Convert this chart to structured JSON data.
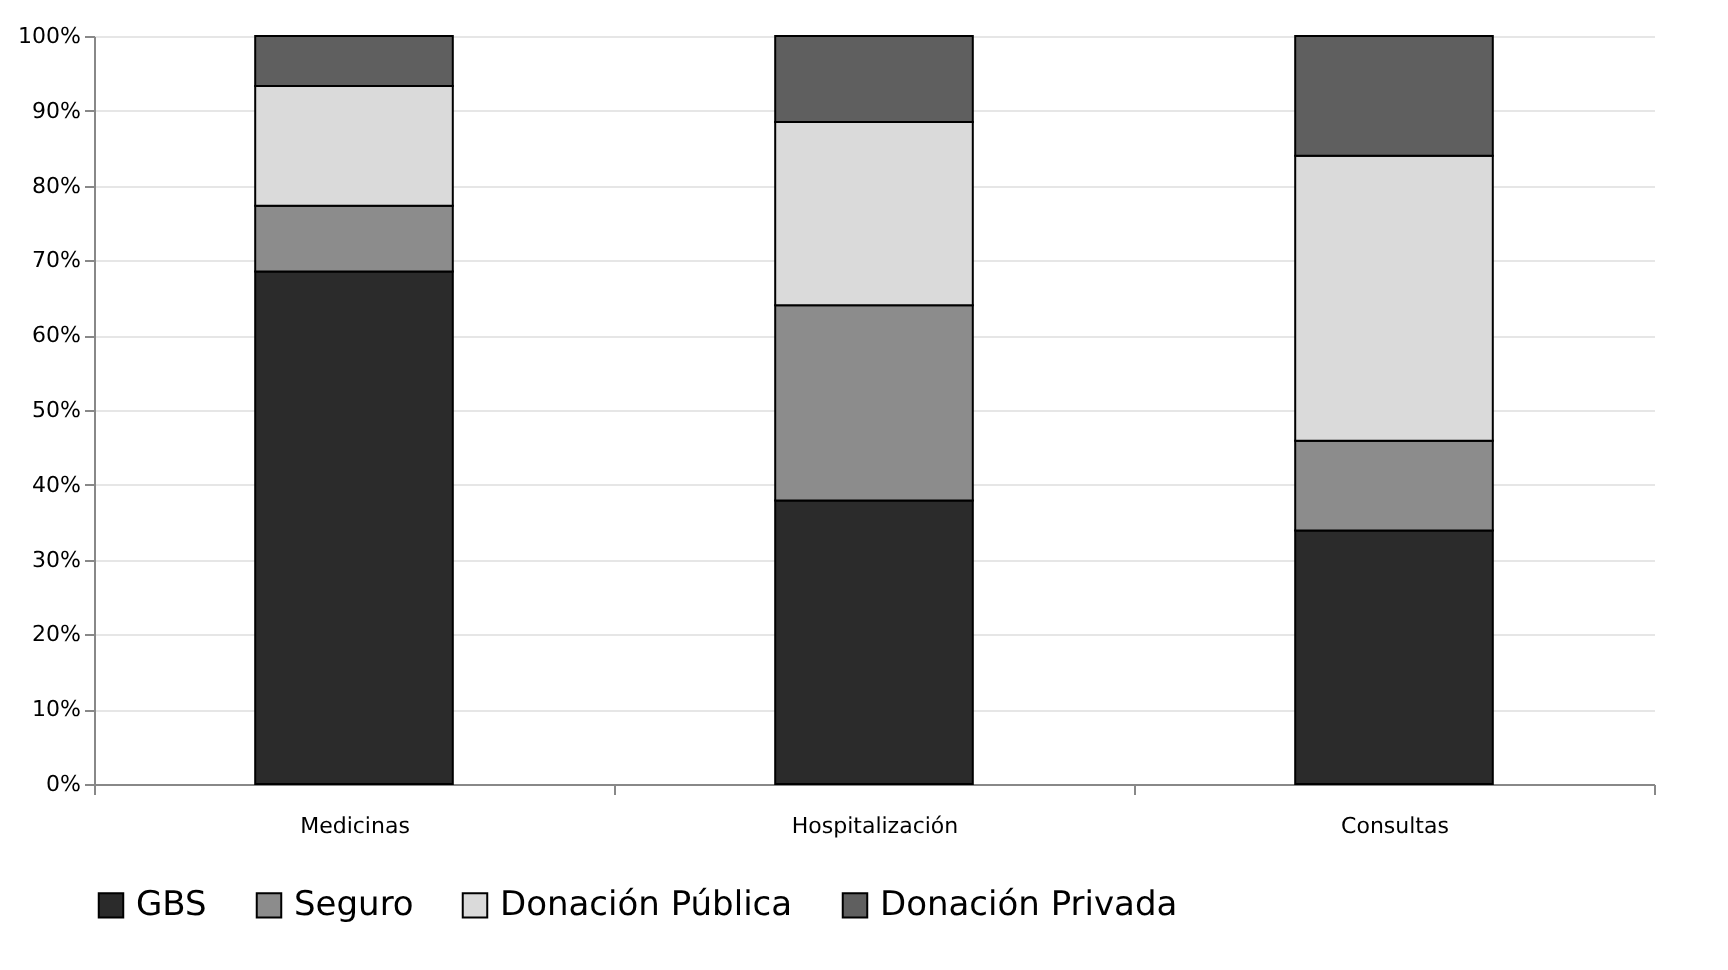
{
  "chart_data": {
    "type": "bar",
    "stacked": true,
    "categories": [
      "Medicinas",
      "Hospitalización",
      "Consultas"
    ],
    "series": [
      {
        "name": "GBS",
        "color": "#2b2b2b",
        "values": [
          68.5,
          37.9,
          33.9
        ]
      },
      {
        "name": "Seguro",
        "color": "#8c8c8c",
        "values": [
          8.8,
          26.1,
          12.0
        ]
      },
      {
        "name": "Donación Pública",
        "color": "#dadada",
        "values": [
          16.0,
          24.5,
          38.1
        ]
      },
      {
        "name": "Donación Privada",
        "color": "#5f5f5f",
        "values": [
          6.7,
          11.5,
          16.0
        ]
      }
    ],
    "ylim": [
      0,
      100
    ],
    "yticks": [
      {
        "value": 0,
        "label": "0%"
      },
      {
        "value": 10,
        "label": "10%"
      },
      {
        "value": 20,
        "label": "20%"
      },
      {
        "value": 30,
        "label": "30%"
      },
      {
        "value": 40,
        "label": "40%"
      },
      {
        "value": 50,
        "label": "50%"
      },
      {
        "value": 60,
        "label": "60%"
      },
      {
        "value": 70,
        "label": "70%"
      },
      {
        "value": 80,
        "label": "80%"
      },
      {
        "value": 90,
        "label": "90%"
      },
      {
        "value": 100,
        "label": "100%"
      }
    ],
    "grid": "y",
    "legend": "bottom"
  }
}
